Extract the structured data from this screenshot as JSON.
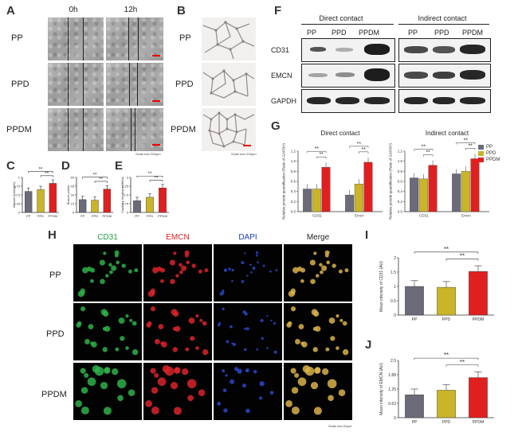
{
  "panels": {
    "A": "A",
    "B": "B",
    "C": "C",
    "D": "D",
    "E": "E",
    "F": "F",
    "G": "G",
    "H": "H",
    "I": "I",
    "J": "J"
  },
  "groups": [
    "PP",
    "PPD",
    "PPDM"
  ],
  "colors": {
    "PP": "#6b6b7a",
    "PPD": "#c9b42a",
    "PPDM": "#e02020"
  },
  "panel_a": {
    "time_labels": [
      "0h",
      "12h"
    ],
    "scale_text": "Scale bar=200μm"
  },
  "panel_b": {
    "scale_text": "Scale bar=100μm"
  },
  "panel_f": {
    "headers": [
      "Direct contact",
      "Indirect contact"
    ],
    "lanes": [
      "PP",
      "PPD",
      "PPDM"
    ],
    "proteins": [
      "CD31",
      "EMCN",
      "GAPDH"
    ]
  },
  "panel_h": {
    "columns": [
      "CD31",
      "EMCN",
      "DAPI",
      "Merge"
    ],
    "rows": [
      "PP",
      "PPD",
      "PPDM"
    ],
    "scale_text": "Scale bar=50μm"
  },
  "chart_data": [
    {
      "id": "C",
      "type": "bar",
      "categories": [
        "PP",
        "PPD",
        "PPDM"
      ],
      "values": [
        0.6,
        0.65,
        0.83
      ],
      "ylim": [
        0,
        1.0
      ],
      "ylabel": "Wound healing(%)",
      "significance": [
        "**",
        "**"
      ]
    },
    {
      "id": "D",
      "type": "bar",
      "categories": [
        "PP",
        "PPD",
        "PPDM"
      ],
      "values": [
        22,
        21,
        40
      ],
      "ylim": [
        0,
        60
      ],
      "ylabel": "Branch points",
      "significance": [
        "**",
        "**"
      ]
    },
    {
      "id": "E",
      "type": "bar",
      "categories": [
        "PP",
        "PPD",
        "PPDM"
      ],
      "values": [
        1.0,
        1.3,
        2.1
      ],
      "ylim": [
        0,
        3
      ],
      "ylabel": "Capillary length(mm/field)",
      "significance": [
        "**",
        "**"
      ]
    },
    {
      "id": "G1",
      "type": "bar",
      "title": "Direct contact",
      "categories": [
        "CD31",
        "Emcn"
      ],
      "series": [
        {
          "name": "PP",
          "values": [
            0.45,
            0.33
          ]
        },
        {
          "name": "PPD",
          "values": [
            0.45,
            0.55
          ]
        },
        {
          "name": "PPDM",
          "values": [
            0.88,
            0.98
          ]
        }
      ],
      "ylim": [
        0,
        1.2
      ],
      "ylabel": "Relative protein quantification (Ratio of GAPDH)",
      "significance": [
        "**",
        "**",
        "**",
        "**"
      ]
    },
    {
      "id": "G2",
      "type": "bar",
      "title": "Indirect contact",
      "categories": [
        "CD31",
        "Emcn"
      ],
      "series": [
        {
          "name": "PP",
          "values": [
            0.67,
            0.75
          ]
        },
        {
          "name": "PPD",
          "values": [
            0.65,
            0.8
          ]
        },
        {
          "name": "PPDM",
          "values": [
            0.92,
            1.05
          ]
        }
      ],
      "ylim": [
        0,
        1.2
      ],
      "ylabel": "Relative protein quantification (Ratio of GAPDH)",
      "significance": [
        "**",
        "**",
        "**",
        "**"
      ]
    },
    {
      "id": "I",
      "type": "bar",
      "categories": [
        "PP",
        "PPD",
        "PPDM"
      ],
      "values": [
        1.0,
        0.97,
        1.52
      ],
      "ylim": [
        0,
        2.0
      ],
      "ylabel": "Mean intensity of CD31 (AU)",
      "significance": [
        "**",
        "**"
      ]
    },
    {
      "id": "J",
      "type": "bar",
      "categories": [
        "PP",
        "PPD",
        "PPDM"
      ],
      "values": [
        1.0,
        1.2,
        1.75
      ],
      "ylim": [
        0,
        2.5
      ],
      "ylabel": "Mean intensity of EMCN (AU)",
      "significance": [
        "**",
        "**"
      ]
    }
  ]
}
